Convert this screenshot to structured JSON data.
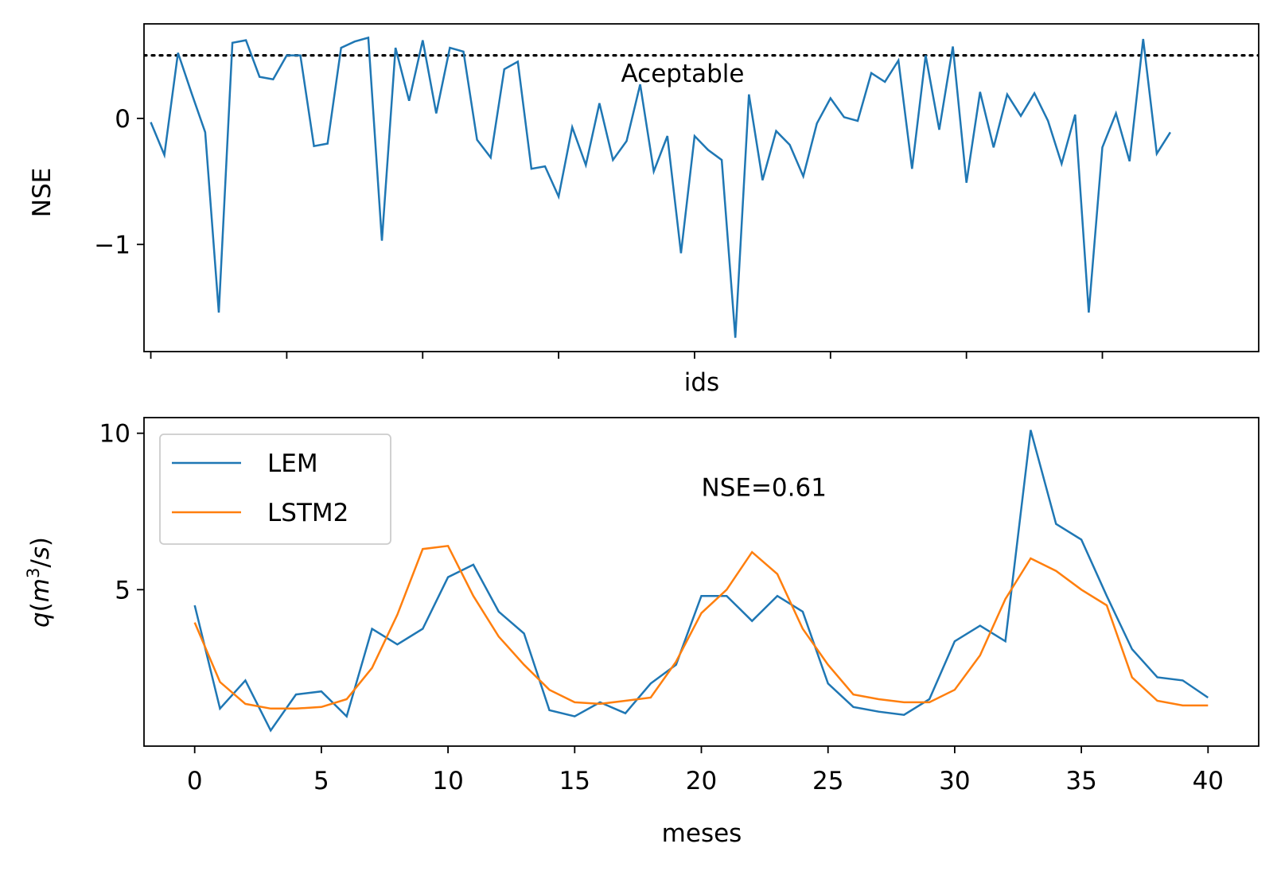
{
  "chart_data": [
    {
      "type": "line",
      "title": "",
      "xlabel": "ids",
      "ylabel": "NSE",
      "ylim": [
        -1.85,
        0.75
      ],
      "xlim": [
        -0.5,
        81.5
      ],
      "x_tick_labels_visible": false,
      "yticks": [
        0,
        -1
      ],
      "ytick_labels": [
        "0",
        "−1"
      ],
      "reference_line": {
        "y": 0.5,
        "style": "dotted",
        "color": "#000000",
        "label": "Aceptable"
      },
      "grid": false,
      "series": [
        {
          "color": "#1f77b4",
          "x": [
            0,
            1,
            2,
            3,
            4,
            5,
            6,
            7,
            8,
            9,
            10,
            11,
            12,
            13,
            14,
            15,
            16,
            17,
            18,
            19,
            20,
            21,
            22,
            23,
            24,
            25,
            26,
            27,
            28,
            29,
            30,
            31,
            32,
            33,
            34,
            35,
            36,
            37,
            38,
            39,
            40,
            41,
            42,
            43,
            44,
            45,
            46,
            47,
            48,
            49,
            50,
            51,
            52,
            53,
            54,
            55,
            56,
            57,
            58,
            59,
            60,
            61,
            62,
            63,
            64,
            65,
            66,
            67,
            68,
            69,
            70,
            71,
            72,
            73,
            74,
            75
          ],
          "values": [
            -0.03,
            -0.29,
            0.52,
            0.2,
            -0.11,
            -1.54,
            0.6,
            0.62,
            0.33,
            0.31,
            0.5,
            0.5,
            -0.22,
            -0.2,
            0.56,
            0.61,
            0.64,
            -0.97,
            0.56,
            0.14,
            0.62,
            0.04,
            0.56,
            0.53,
            -0.17,
            -0.31,
            0.39,
            0.45,
            -0.4,
            -0.38,
            -0.62,
            -0.07,
            -0.37,
            0.12,
            -0.33,
            -0.18,
            0.27,
            -0.42,
            -0.14,
            -1.07,
            -0.14,
            -0.25,
            -0.33,
            -1.74,
            0.19,
            -0.49,
            -0.1,
            -0.21,
            -0.46,
            -0.04,
            0.16,
            0.01,
            -0.02,
            0.36,
            0.29,
            0.46,
            -0.4,
            0.5,
            -0.09,
            0.57,
            -0.51,
            0.21,
            -0.23,
            0.19,
            0.02,
            0.2,
            -0.02,
            -0.36,
            0.03,
            -1.54,
            -0.23,
            0.04,
            -0.34,
            0.63,
            -0.28,
            -0.11
          ]
        }
      ]
    },
    {
      "type": "line",
      "title": "",
      "xlabel": "meses",
      "ylabel": "q(m³/s)",
      "xlim": [
        -2,
        42
      ],
      "ylim": [
        0.0,
        10.5
      ],
      "xticks": [
        0,
        5,
        10,
        15,
        20,
        25,
        30,
        35,
        40
      ],
      "yticks": [
        5,
        10
      ],
      "annotation": {
        "text": "NSE=0.61",
        "x": 20,
        "y": 8.0
      },
      "legend": {
        "position": "top-left"
      },
      "grid": false,
      "series": [
        {
          "name": "LEM",
          "color": "#1f77b4",
          "x": [
            0,
            1,
            2,
            3,
            4,
            5,
            6,
            7,
            8,
            9,
            10,
            11,
            12,
            13,
            14,
            15,
            16,
            17,
            18,
            19,
            20,
            21,
            22,
            23,
            24,
            25,
            26,
            27,
            28,
            29,
            30,
            31,
            32,
            33,
            34,
            35,
            36,
            37,
            38,
            39,
            40
          ],
          "values": [
            4.5,
            1.2,
            2.1,
            0.5,
            1.65,
            1.75,
            0.95,
            3.75,
            3.25,
            3.75,
            5.4,
            5.8,
            4.3,
            3.6,
            1.15,
            0.95,
            1.4,
            1.05,
            2.0,
            2.6,
            4.8,
            4.8,
            4.0,
            4.8,
            4.3,
            2.0,
            1.25,
            1.1,
            1.0,
            1.5,
            3.35,
            3.85,
            3.35,
            10.1,
            7.1,
            6.6,
            4.8,
            3.1,
            2.2,
            2.1,
            1.55
          ]
        },
        {
          "name": "LSTM2",
          "color": "#ff7f0e",
          "x": [
            0,
            1,
            2,
            3,
            4,
            5,
            6,
            7,
            8,
            9,
            10,
            11,
            12,
            13,
            14,
            15,
            16,
            17,
            18,
            19,
            20,
            21,
            22,
            23,
            24,
            25,
            26,
            27,
            28,
            29,
            30,
            31,
            32,
            33,
            34,
            35,
            36,
            37,
            38,
            39,
            40
          ],
          "values": [
            3.95,
            2.05,
            1.35,
            1.2,
            1.2,
            1.25,
            1.5,
            2.5,
            4.2,
            6.3,
            6.4,
            4.8,
            3.5,
            2.6,
            1.8,
            1.4,
            1.35,
            1.45,
            1.55,
            2.7,
            4.25,
            5.0,
            6.2,
            5.5,
            3.75,
            2.6,
            1.65,
            1.5,
            1.4,
            1.4,
            1.8,
            2.9,
            4.7,
            6.0,
            5.6,
            5.0,
            4.5,
            2.2,
            1.45,
            1.3,
            1.3
          ]
        }
      ]
    }
  ]
}
